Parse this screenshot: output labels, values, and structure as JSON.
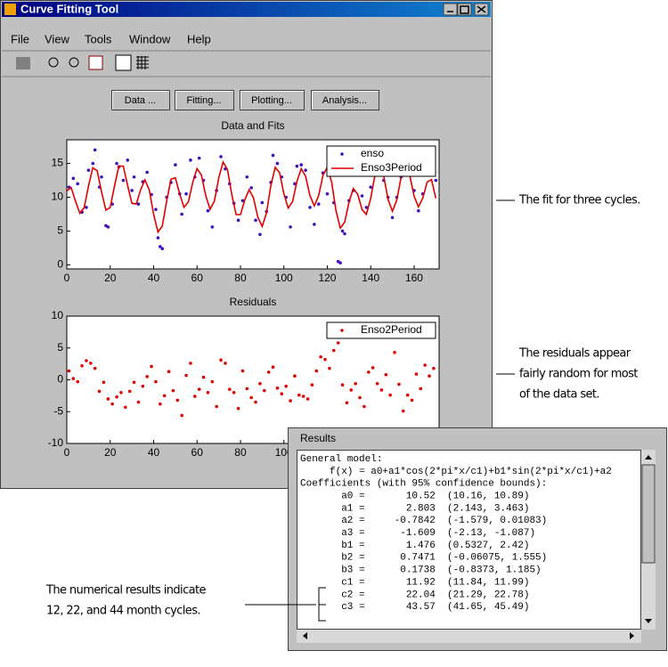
{
  "window": {
    "title": "Curve Fitting Tool",
    "menu": [
      "File",
      "View",
      "Tools",
      "Window",
      "Help"
    ],
    "buttons": [
      "Data ...",
      "Fitting...",
      "Plotting...",
      "Analysis..."
    ]
  },
  "chart_data": [
    {
      "type": "scatter",
      "title": "Data and Fits",
      "xlim": [
        0,
        171.5
      ],
      "xticks": [
        0,
        20,
        40,
        60,
        80,
        100,
        120,
        140,
        160
      ],
      "ylim": [
        -0.6,
        18.5
      ],
      "yticks": [
        0,
        5,
        10,
        15
      ],
      "legend": "upper right",
      "series": [
        {
          "name": "enso",
          "type": "scatter",
          "color": "#4010c0",
          "x": [
            1,
            3,
            5,
            7,
            9,
            10,
            12,
            13,
            15,
            16,
            18,
            19,
            21,
            23,
            24,
            26,
            28,
            30,
            31,
            33,
            35,
            37,
            39,
            41,
            42,
            43,
            44,
            46,
            48,
            50,
            52,
            53,
            55,
            57,
            59,
            61,
            63,
            65,
            67,
            69,
            71,
            73,
            75,
            77,
            79,
            81,
            83,
            85,
            87,
            89,
            90,
            92,
            94,
            95,
            97,
            99,
            101,
            103,
            105,
            106,
            108,
            110,
            112,
            114,
            116,
            118,
            120,
            121,
            123,
            125,
            126,
            127,
            128,
            130,
            132,
            134,
            136,
            138,
            140,
            142,
            144,
            146,
            148,
            150,
            152,
            154,
            156,
            158,
            160,
            162,
            164,
            166,
            168,
            170
          ],
          "values": [
            11.5,
            12.8,
            12,
            7.8,
            8.5,
            14,
            15,
            17,
            11.5,
            13,
            5.8,
            5.6,
            9,
            15,
            14.5,
            12.5,
            15.5,
            11,
            13,
            9,
            12.3,
            13.7,
            10.4,
            8.2,
            4,
            2.7,
            2.4,
            10,
            12.2,
            14.8,
            10.5,
            7.5,
            10.5,
            15.5,
            13,
            15.8,
            12.5,
            8,
            5.6,
            11,
            16,
            14.2,
            12,
            9.1,
            6.6,
            9.5,
            13,
            11.4,
            6.6,
            4.5,
            9.2,
            7.9,
            12.2,
            16.2,
            15,
            13,
            10,
            5.6,
            12,
            14.6,
            14.8,
            14,
            8.5,
            6,
            9,
            13.6,
            10.5,
            14,
            9.2,
            0.5,
            0.3,
            5,
            4.6,
            9.5,
            11,
            14.2,
            10.2,
            8.5,
            11.5,
            13.4,
            14.9,
            12.5,
            10,
            7,
            10,
            13,
            15,
            13.5,
            11,
            8,
            10.5,
            13.5,
            15,
            12.5
          ]
        },
        {
          "name": "Enso3Period",
          "type": "line",
          "color": "#e00000",
          "x": [
            0,
            2,
            4,
            6,
            8,
            10,
            12,
            14,
            16,
            18,
            20,
            22,
            24,
            26,
            28,
            30,
            32,
            34,
            36,
            38,
            40,
            42,
            44,
            46,
            48,
            50,
            52,
            54,
            56,
            58,
            60,
            62,
            64,
            66,
            68,
            70,
            72,
            74,
            76,
            78,
            80,
            82,
            84,
            86,
            88,
            90,
            92,
            94,
            96,
            98,
            100,
            102,
            104,
            106,
            108,
            110,
            112,
            114,
            116,
            118,
            120,
            122,
            124,
            126,
            128,
            130,
            132,
            134,
            136,
            138,
            140,
            142,
            144,
            146,
            148,
            150,
            152,
            154,
            156,
            158,
            160,
            162,
            164,
            166,
            168,
            170
          ],
          "values": [
            10.93,
            11.44,
            9.45,
            7.63,
            8.48,
            11.69,
            14.36,
            13.93,
            10.81,
            8.1,
            8.49,
            11.69,
            14.64,
            14.6,
            11.8,
            9.11,
            9.0,
            11.11,
            12.57,
            11.1,
            7.47,
            4.85,
            5.73,
            9.42,
            12.66,
            12.87,
            10.5,
            8.53,
            9.31,
            12.21,
            14.24,
            13.29,
            10.24,
            8.23,
            9.44,
            12.87,
            15.21,
            14.1,
            10.44,
            7.43,
            7.44,
            9.64,
            11.13,
            9.9,
            7.05,
            5.68,
            7.69,
            11.73,
            14.43,
            13.63,
            10.53,
            8.4,
            9.37,
            12.34,
            14.22,
            13.1,
            10.26,
            8.73,
            10.22,
            13.23,
            14.47,
            12.22,
            8.06,
            5.43,
            6.31,
            9.32,
            11.3,
            10.45,
            8.18,
            7.48,
            9.8,
            13.39,
            15.01,
            13.17,
            9.68,
            7.94,
            9.6,
            12.94,
            14.66,
            13.19,
            10.13,
            8.58,
            9.89,
            12.25,
            12.61,
            9.85
          ]
        }
      ]
    },
    {
      "type": "scatter",
      "title": "Residuals",
      "xlim": [
        0,
        171.5
      ],
      "xticks": [
        0,
        20,
        40,
        60,
        80,
        100
      ],
      "ylim": [
        -10,
        10
      ],
      "yticks": [
        -10,
        -5,
        0,
        5,
        10
      ],
      "legend": "upper right",
      "series": [
        {
          "name": "Enso2Period",
          "type": "scatter",
          "color": "#e00000",
          "x": [
            1,
            3,
            5,
            7,
            9,
            11,
            13,
            15,
            17,
            19,
            21,
            23,
            25,
            27,
            29,
            31,
            33,
            35,
            37,
            39,
            41,
            43,
            45,
            47,
            49,
            51,
            53,
            55,
            57,
            59,
            61,
            63,
            65,
            67,
            69,
            71,
            73,
            75,
            77,
            79,
            81,
            83,
            85,
            87,
            89,
            91,
            93,
            95,
            97,
            99,
            101,
            103,
            105,
            107,
            109,
            111,
            113,
            115,
            117,
            119,
            121,
            123,
            125,
            127,
            129,
            131,
            133,
            135,
            137,
            139,
            141,
            143,
            145,
            147,
            149,
            151,
            153,
            155,
            157,
            159,
            161,
            163,
            165,
            167,
            169
          ],
          "values": [
            1.4,
            0.2,
            -0.3,
            2.2,
            3.0,
            2.6,
            1.8,
            -1.8,
            -0.4,
            -3.0,
            -3.8,
            -2.7,
            -2.0,
            -4.3,
            -1.8,
            -0.4,
            -3.5,
            -1.0,
            0.5,
            2.1,
            -0.3,
            -3.8,
            -2.5,
            1.3,
            -1.7,
            -3.2,
            -5.6,
            0.7,
            2.6,
            -2.6,
            -1.5,
            0.4,
            -2.0,
            -0.3,
            -4.2,
            3.1,
            2.6,
            -1.5,
            -2.0,
            -4.5,
            1.4,
            -1.4,
            -2.8,
            -3.5,
            -0.6,
            -1.7,
            1.2,
            2.0,
            -1.3,
            -2.2,
            -1.0,
            -3.3,
            0.6,
            -2.4,
            -2.6,
            -3.0,
            -0.8,
            1.4,
            3.6,
            3.2,
            1.8,
            4.6,
            5.8,
            -0.8,
            -3.6,
            -1.6,
            -0.6,
            -2.8,
            -4.2,
            1.2,
            1.9,
            -0.6,
            -1.6,
            0.8,
            -2.4,
            4.3,
            -0.7,
            -4.9,
            -2.4,
            -3.2,
            0.9,
            -1.4,
            2.3,
            0.6,
            1.8
          ]
        }
      ]
    }
  ],
  "results": {
    "title": "Results",
    "lines": [
      "General model:",
      "     f(x) = a0+a1*cos(2*pi*x/c1)+b1*sin(2*pi*x/c1)+a2",
      "Coefficients (with 95% confidence bounds):",
      "       a0 =       10.52  (10.16, 10.89)",
      "       a1 =       2.803  (2.143, 3.463)",
      "       a2 =     -0.7842  (-1.579, 0.01083)",
      "       a3 =      -1.609  (-2.13, -1.087)",
      "       b1 =       1.476  (0.5327, 2.42)",
      "       b2 =      0.7471  (-0.06075, 1.555)",
      "       b3 =      0.1738  (-0.8373, 1.185)",
      "       c1 =       11.92  (11.84, 11.99)",
      "       c2 =       22.04  (21.29, 22.78)",
      "       c3 =       43.57  (41.65, 45.49)"
    ]
  },
  "callouts": [
    [
      "The fit for three cycles."
    ],
    [
      "The residuals appear",
      "fairly random for most",
      "of the data set."
    ],
    [
      "The numerical results indicate",
      "12, 22, and 44 month cycles."
    ]
  ]
}
